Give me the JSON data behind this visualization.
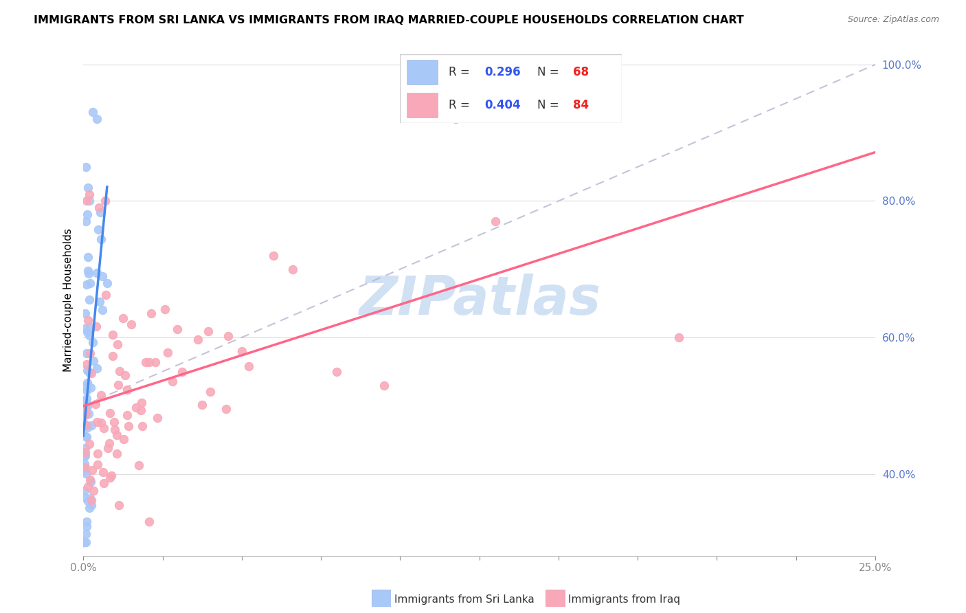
{
  "title": "IMMIGRANTS FROM SRI LANKA VS IMMIGRANTS FROM IRAQ MARRIED-COUPLE HOUSEHOLDS CORRELATION CHART",
  "source": "Source: ZipAtlas.com",
  "ylabel": "Married-couple Households",
  "xlim": [
    0.0,
    0.25
  ],
  "ylim": [
    0.28,
    1.03
  ],
  "ytick_positions": [
    0.4,
    0.6,
    0.8,
    1.0
  ],
  "yticklabels": [
    "40.0%",
    "60.0%",
    "80.0%",
    "100.0%"
  ],
  "sri_lanka_color": "#a8c8f8",
  "iraq_color": "#f8a8b8",
  "sri_lanka_line_color": "#4488ee",
  "iraq_line_color": "#ff6688",
  "diag_line_color": "#b0b0cc",
  "watermark": "ZIPatlas",
  "watermark_color": "#9bbde8",
  "background_color": "#ffffff",
  "grid_color": "#dddddd",
  "title_fontsize": 11.5,
  "source_fontsize": 9,
  "tick_color": "#5577cc",
  "tick_fontsize": 11
}
